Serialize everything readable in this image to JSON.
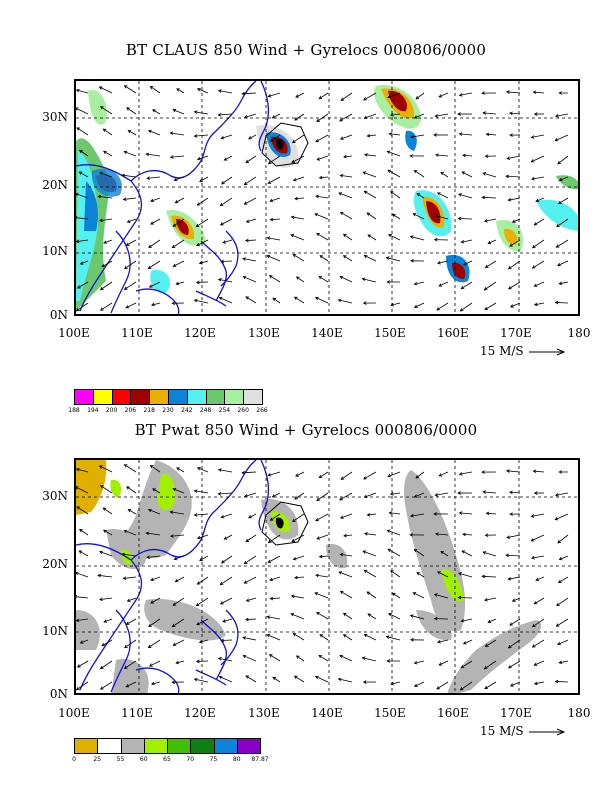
{
  "panels": [
    {
      "title": "BT CLAUS 850 Wind + Gyrelocs 000806/0000",
      "lat_labels": [
        "0N",
        "10N",
        "20N",
        "30N"
      ],
      "lon_labels": [
        "100E",
        "110E",
        "120E",
        "130E",
        "140E",
        "150E",
        "160E",
        "170E",
        "180"
      ],
      "vector_scale": "15 M/S",
      "colorbar": {
        "colors": [
          "#ff00ff",
          "#ffff00",
          "#ff0000",
          "#a00000",
          "#e8b000",
          "#0a84d8",
          "#55f0f0",
          "#6cc86c",
          "#a8f0a0",
          "#e0e0e0"
        ],
        "ticks": [
          "188",
          "194",
          "200",
          "206",
          "218",
          "230",
          "242",
          "248",
          "254",
          "260",
          "266"
        ]
      }
    },
    {
      "title": "BT Pwat 850 Wind + Gyrelocs 000806/0000",
      "lat_labels": [
        "0N",
        "10N",
        "20N",
        "30N"
      ],
      "lon_labels": [
        "100E",
        "110E",
        "120E",
        "130E",
        "140E",
        "150E",
        "160E",
        "170E",
        "180"
      ],
      "vector_scale": "15 M/S",
      "colorbar": {
        "colors": [
          "#e0b000",
          "#ffffff",
          "#b4b4b4",
          "#a0f000",
          "#40c000",
          "#108010",
          "#0a84d8",
          "#8800c8"
        ],
        "ticks": [
          "0",
          "25",
          "55",
          "60",
          "65",
          "70",
          "75",
          "80",
          "87.87"
        ]
      }
    }
  ],
  "map_style": {
    "coast_color": "#1010e0",
    "grid_color": "#000000"
  }
}
